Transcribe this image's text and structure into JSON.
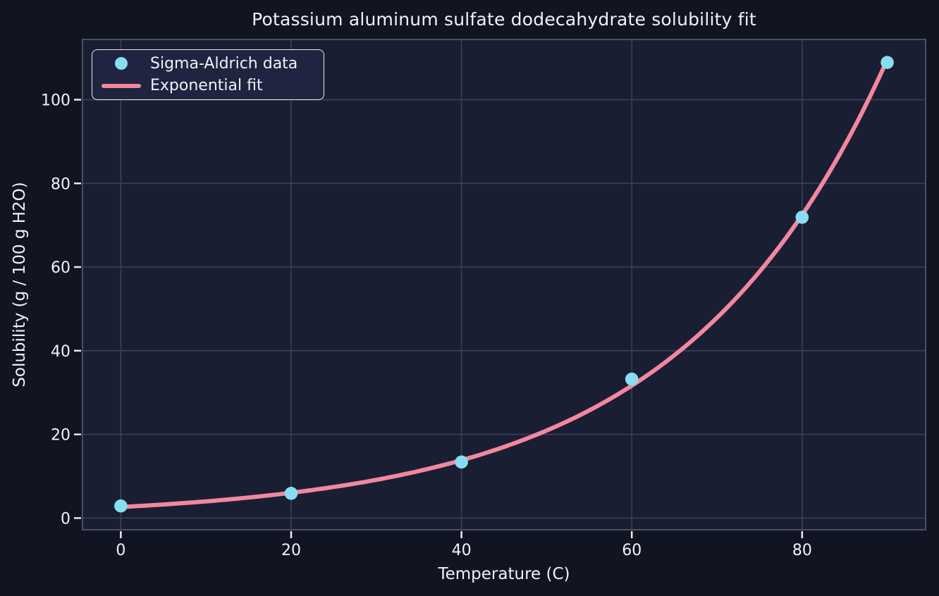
{
  "colors": {
    "figure_bg": "#111522",
    "axes_bg": "#1a1e33",
    "grid": "#3a4059",
    "spine": "#4a4f63",
    "tick": "#e9ebf1",
    "text": "#f0f2f6",
    "scatter": "#87def2",
    "fit_line": "#f2879e",
    "legend_bg": "#1f2440",
    "legend_border": "#eaecf2"
  },
  "chart_data": {
    "type": "scatter",
    "title": "Potassium aluminum sulfate dodecahydrate solubility fit",
    "xlabel": "Temperature (C)",
    "ylabel": "Solubility (g / 100 g H2O)",
    "xlim": [
      -4.5,
      94.5
    ],
    "ylim": [
      -2.8,
      114.4
    ],
    "xticks": [
      0,
      20,
      40,
      60,
      80
    ],
    "yticks": [
      0,
      20,
      40,
      60,
      80,
      100
    ],
    "grid": true,
    "legend_position": "upper left",
    "series": [
      {
        "name": "Sigma-Aldrich data",
        "type": "scatter",
        "color": "#87def2",
        "x": [
          0,
          20,
          40,
          60,
          80,
          90
        ],
        "y": [
          2.9,
          5.9,
          13.4,
          33.2,
          71.9,
          108.9
        ]
      },
      {
        "name": "Exponential fit",
        "type": "line",
        "color": "#f2879e",
        "fit": {
          "form": "y = a*exp(b*x)",
          "a": 2.64,
          "b": 0.0414
        },
        "x_range": [
          0,
          90
        ]
      }
    ]
  }
}
